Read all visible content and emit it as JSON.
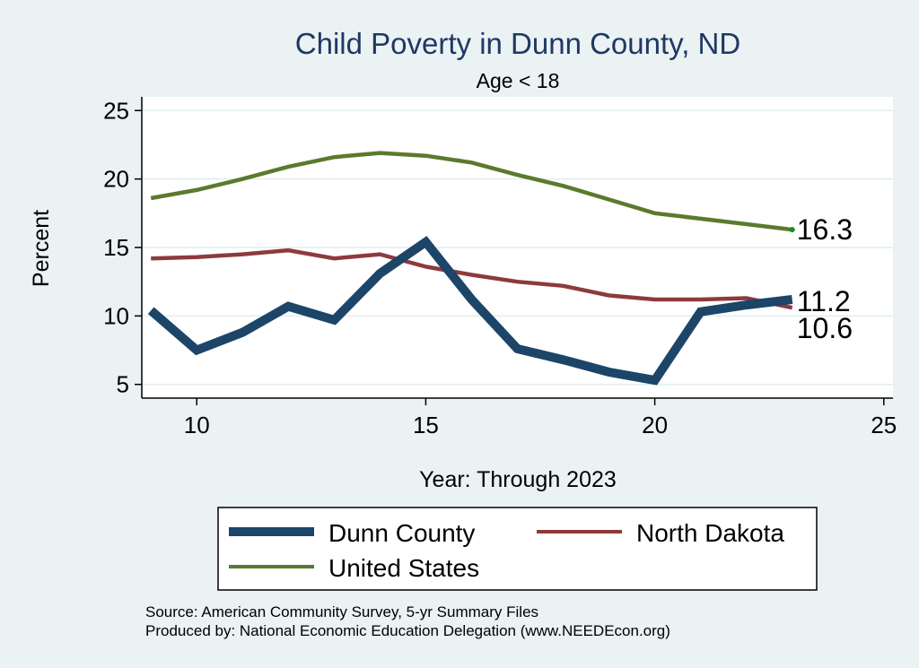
{
  "chart_data": {
    "type": "line",
    "title": "Child Poverty in Dunn County, ND",
    "subtitle": "Age < 18",
    "xlabel": "Year: Through 2023",
    "ylabel": "Percent",
    "xlim": [
      8.8,
      25.2
    ],
    "ylim": [
      4.0,
      26.0
    ],
    "xticks": [
      10,
      15,
      20,
      25
    ],
    "yticks": [
      5,
      10,
      15,
      20,
      25
    ],
    "grid": true,
    "series": [
      {
        "name": "United States",
        "color": "#5a7a2e",
        "width": "thin",
        "x": [
          9,
          10,
          11,
          12,
          13,
          14,
          15,
          16,
          17,
          18,
          19,
          20,
          21,
          22,
          23
        ],
        "values": [
          18.6,
          19.2,
          20.0,
          20.9,
          21.6,
          21.9,
          21.7,
          21.2,
          20.3,
          19.5,
          18.5,
          17.5,
          17.1,
          16.7,
          16.3
        ],
        "end_label": "16.3"
      },
      {
        "name": "North Dakota",
        "color": "#8e3a3d",
        "width": "thin",
        "x": [
          9,
          10,
          11,
          12,
          13,
          14,
          15,
          16,
          17,
          18,
          19,
          20,
          21,
          22,
          23
        ],
        "values": [
          14.2,
          14.3,
          14.5,
          14.8,
          14.2,
          14.5,
          13.6,
          13.0,
          12.5,
          12.2,
          11.5,
          11.2,
          11.2,
          11.3,
          10.6
        ],
        "end_label": "10.6"
      },
      {
        "name": "Dunn County",
        "color": "#1c4568",
        "width": "thick",
        "x": [
          9,
          10,
          11,
          12,
          13,
          14,
          15,
          16,
          17,
          18,
          19,
          20,
          21,
          22,
          23
        ],
        "values": [
          10.4,
          7.5,
          8.8,
          10.7,
          9.7,
          13.1,
          15.4,
          11.2,
          7.6,
          6.8,
          5.9,
          5.3,
          10.3,
          10.8,
          11.2
        ],
        "end_label": "11.2"
      }
    ],
    "legend": {
      "position": "bottom",
      "items": [
        "Dunn County",
        "North Dakota",
        "United States"
      ]
    }
  },
  "source": {
    "line1": "Source: American Community Survey, 5-yr Summary Files",
    "line2": "Produced by: National Economic Education Delegation (www.NEEDEcon.org)"
  }
}
